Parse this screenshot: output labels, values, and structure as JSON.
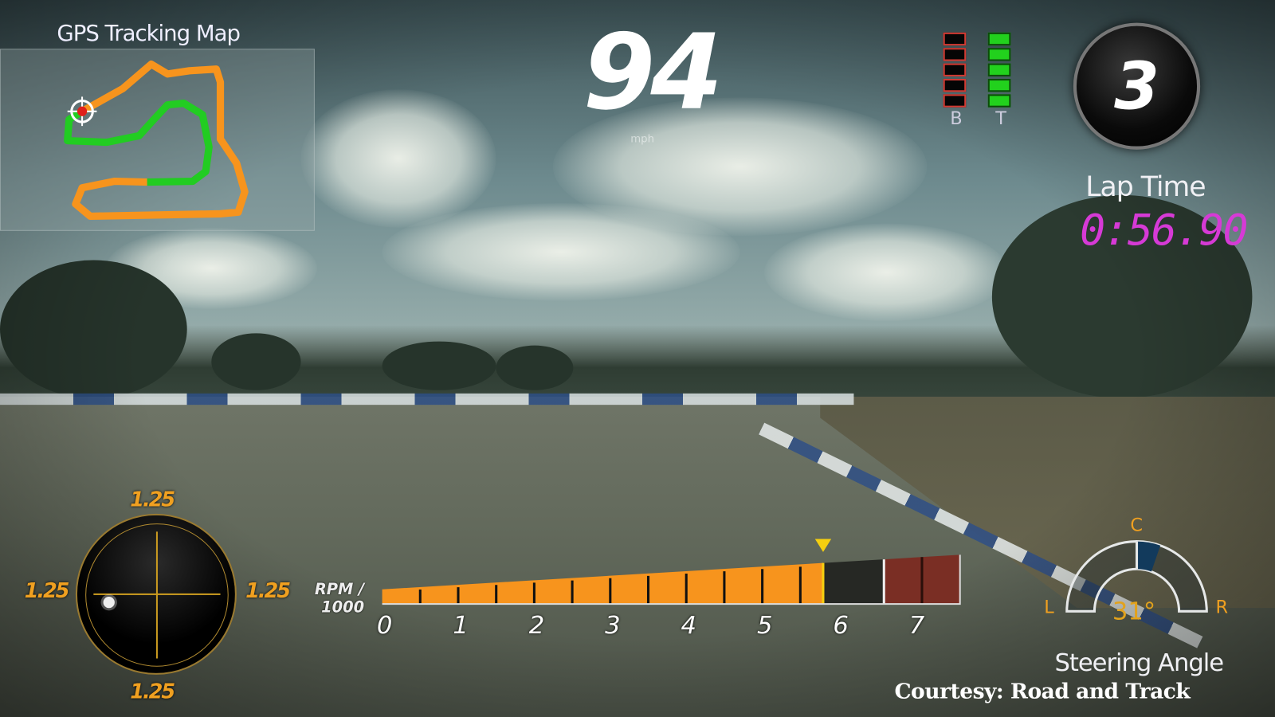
{
  "gps_map": {
    "title": "GPS Tracking Map",
    "track_color": "#f7941d",
    "progress_color": "#22cc22",
    "position_marker_color": "#e0201a"
  },
  "speed": {
    "value": "94",
    "unit": "mph"
  },
  "pedals": {
    "brake_label": "B",
    "throttle_label": "T",
    "brake_segments_lit": 0,
    "throttle_segments_lit": 5,
    "segments_total": 5
  },
  "gear": {
    "value": "3"
  },
  "lap": {
    "label": "Lap Time",
    "time": "0:56.90"
  },
  "g_meter": {
    "top": "1.25",
    "left": "1.25",
    "right": "1.25",
    "bottom": "1.25"
  },
  "rpm": {
    "label_line1": "RPM /",
    "label_line2": "1000",
    "ticks": [
      "0",
      "1",
      "2",
      "3",
      "4",
      "5",
      "6",
      "7"
    ],
    "current": 5.8,
    "shift_point": 5.8,
    "redline_start": 6.6,
    "max": 7.6,
    "fill_color": "#f7941d",
    "redline_color": "#7a2e24"
  },
  "steering": {
    "title": "Steering Angle",
    "value": "31°",
    "left_label": "L",
    "center_label": "C",
    "right_label": "R"
  },
  "credit": "Courtesy: Road and Track"
}
